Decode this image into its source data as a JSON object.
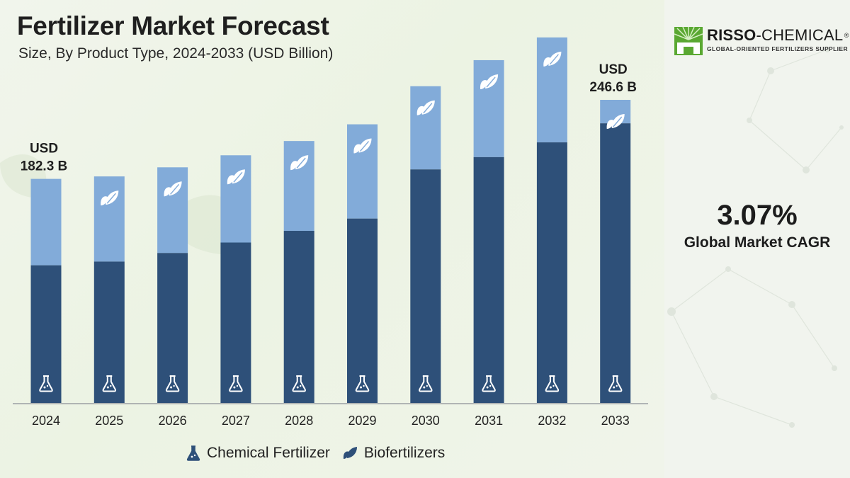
{
  "header": {
    "title": "Fertilizer Market Forecast",
    "subtitle": "Size, By Product Type, 2024-2033 (USD Billion)"
  },
  "brand": {
    "name_bold": "RISSO",
    "name_rest": "-CHEMICAL",
    "registered": "®",
    "tagline": "GLOBAL-ORIENTED FERTILIZERS SUPPLIER"
  },
  "kpi": {
    "cagr_value": "3.07%",
    "cagr_label": "Global Market CAGR"
  },
  "colors": {
    "chemical": "#2e5079",
    "bio": "#82abd9",
    "axis": "#8a8f96",
    "brand_green": "#5aa832"
  },
  "chart_data": {
    "type": "bar",
    "stacked": true,
    "categories": [
      "2024",
      "2025",
      "2026",
      "2027",
      "2028",
      "2029",
      "2030",
      "2031",
      "2032",
      "2033"
    ],
    "series": [
      {
        "name": "Chemical Fertilizer",
        "icon": "flask-icon",
        "values": [
          112.0,
          115.0,
          122.0,
          130.5,
          140.0,
          150.0,
          190.0,
          200.0,
          212.0,
          227.5
        ]
      },
      {
        "name": "Biofertilizers",
        "icon": "leaf-icon",
        "values": [
          70.3,
          69.3,
          69.7,
          71.0,
          73.1,
          76.7,
          67.7,
          78.9,
          85.4,
          19.1
        ]
      }
    ],
    "totals_labeled": [
      {
        "category": "2024",
        "line1": "USD",
        "line2": "182.3 B"
      },
      {
        "category": "2033",
        "line1": "USD",
        "line2": "246.6 B"
      }
    ],
    "legend": [
      "Chemical Fertilizer",
      "Biofertilizers"
    ],
    "legend_position": "bottom"
  }
}
